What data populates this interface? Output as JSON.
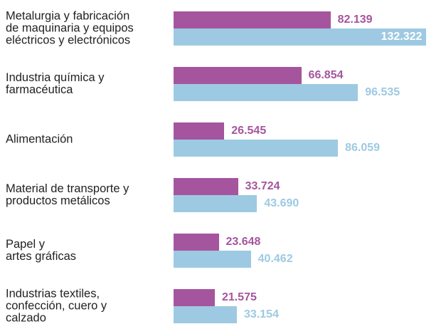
{
  "chart_data": {
    "type": "bar",
    "orientation": "horizontal",
    "categories": [
      "Metalurgia y fabricación\nde maquinaria y equipos\neléctricos y electrónicos",
      "Industria química y\nfarmacéutica",
      "Alimentación",
      "Material de transporte y\nproductos metálicos",
      "Papel y\nartes gráficas",
      "Industrias textiles,\nconfección, cuero y\ncalzado"
    ],
    "series": [
      {
        "color": "#a5559e",
        "values": [
          82139,
          66854,
          26545,
          33724,
          23648,
          21575
        ],
        "value_labels": [
          "82.139",
          "66.854",
          "26.545",
          "33.724",
          "23.648",
          "21.575"
        ]
      },
      {
        "color": "#9dcae2",
        "values": [
          132322,
          96535,
          86059,
          43690,
          40462,
          33154
        ],
        "value_labels": [
          "132.322",
          "96.535",
          "86.059",
          "43.690",
          "40.462",
          "33.154"
        ]
      }
    ],
    "xlim": [
      0,
      140000
    ]
  }
}
